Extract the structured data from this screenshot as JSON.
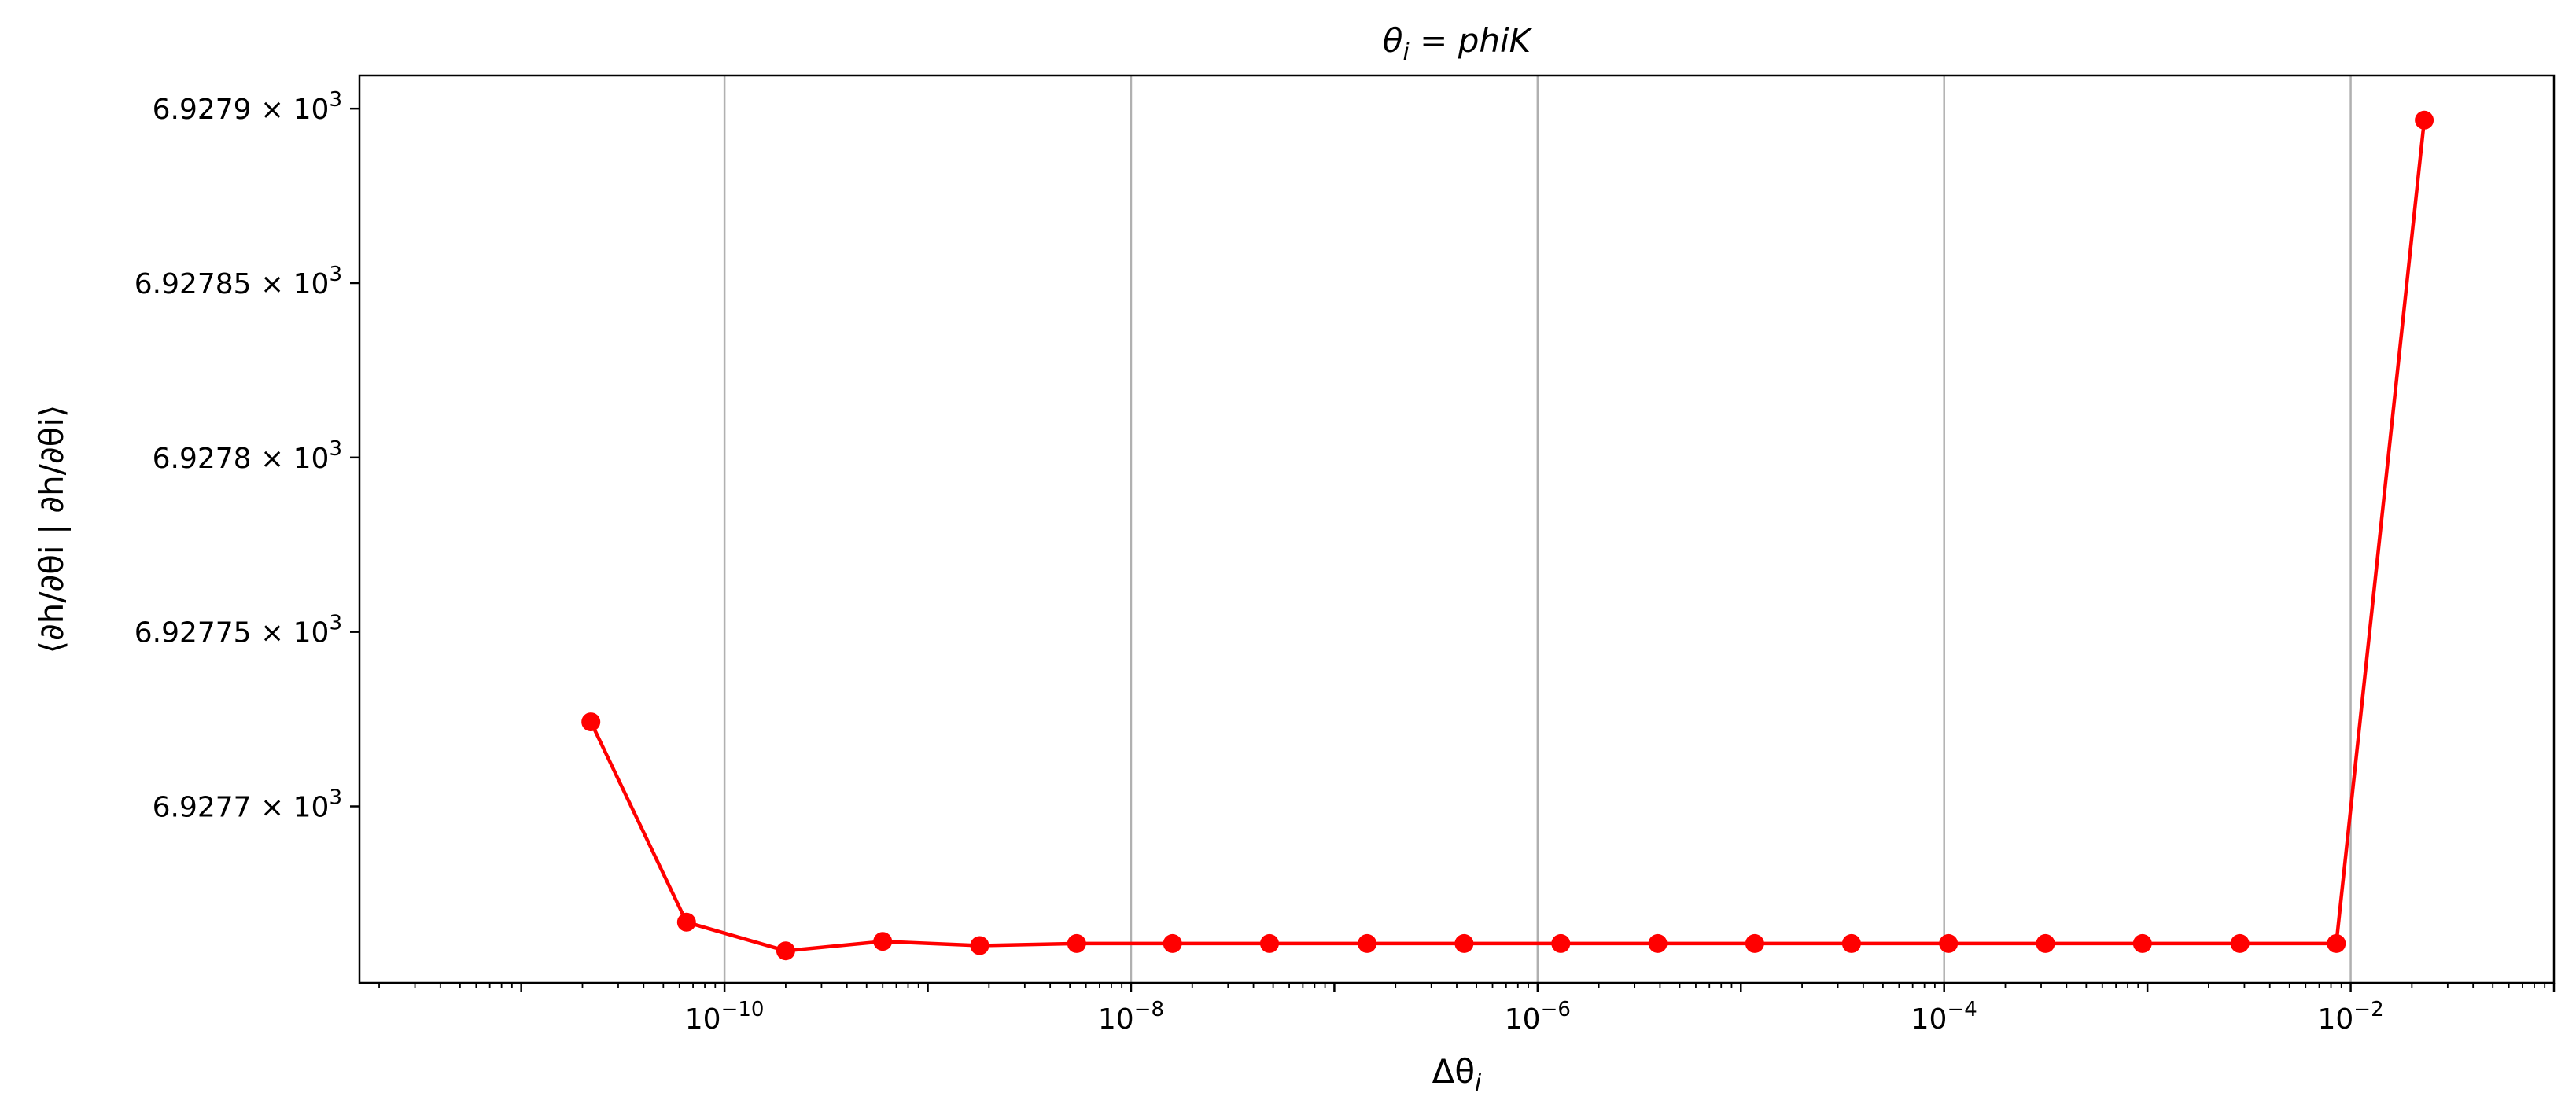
{
  "chart_data": {
    "type": "line",
    "title_symbol": "θ",
    "title_subscript": "i",
    "title_rest": " = phiK",
    "xlabel_symbol": "Δθ",
    "xlabel_subscript": "i",
    "ylabel": "⟨∂h/∂θi | ∂h/∂θi⟩",
    "x_scale": "log",
    "xlim": [
      1.6e-12,
      0.1
    ],
    "ylim": [
      6927.6494,
      6927.9095
    ],
    "grid": "x-major",
    "x_ticks": [
      {
        "value": 1e-10,
        "base": "10",
        "exp": "−10"
      },
      {
        "value": 1e-08,
        "base": "10",
        "exp": "−8"
      },
      {
        "value": 1e-06,
        "base": "10",
        "exp": "−6"
      },
      {
        "value": 0.0001,
        "base": "10",
        "exp": "−4"
      },
      {
        "value": 0.01,
        "base": "10",
        "exp": "−2"
      }
    ],
    "y_ticks": [
      {
        "value": 6927.7,
        "mantissa": "6.9277",
        "times": "×",
        "base": "10",
        "exp": "3"
      },
      {
        "value": 6927.75,
        "mantissa": "6.92775",
        "times": "×",
        "base": "10",
        "exp": "3"
      },
      {
        "value": 6927.8,
        "mantissa": "6.9278",
        "times": "×",
        "base": "10",
        "exp": "3"
      },
      {
        "value": 6927.85,
        "mantissa": "6.92785",
        "times": "×",
        "base": "10",
        "exp": "3"
      },
      {
        "value": 6927.9,
        "mantissa": "6.9279",
        "times": "×",
        "base": "10",
        "exp": "3"
      }
    ],
    "series": [
      {
        "color": "#ff0000",
        "marker": "circle",
        "x": [
          2.2e-11,
          6.5e-11,
          2e-10,
          6e-10,
          1.8e-09,
          5.4e-09,
          1.6e-08,
          4.8e-08,
          1.45e-07,
          4.35e-07,
          1.3e-06,
          3.9e-06,
          1.17e-05,
          3.5e-05,
          0.000105,
          0.000315,
          0.000945,
          0.00285,
          0.0085,
          0.023
        ],
        "y": [
          6927.7242,
          6927.6668,
          6927.6586,
          6927.6613,
          6927.6601,
          6927.6607,
          6927.6607,
          6927.6607,
          6927.6607,
          6927.6607,
          6927.6607,
          6927.6607,
          6927.6607,
          6927.6607,
          6927.6607,
          6927.6607,
          6927.6607,
          6927.6607,
          6927.6607,
          6927.8967
        ]
      }
    ]
  }
}
